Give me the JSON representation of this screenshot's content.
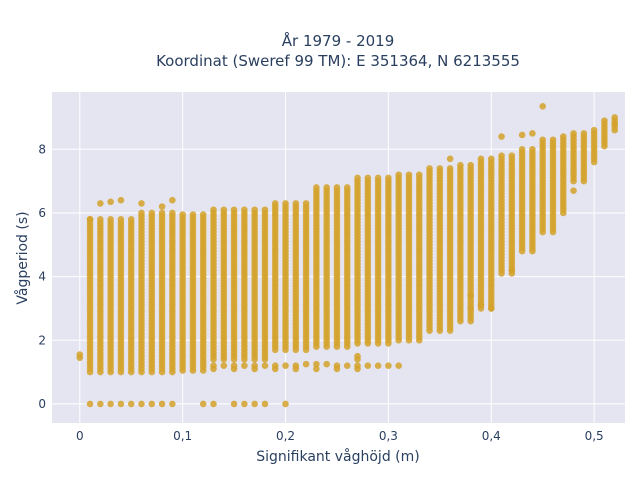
{
  "chart_data": {
    "type": "scatter",
    "title_line1": "År 1979 - 2019",
    "title_line2": "Koordinat (Sweref 99 TM): E 351364, N 6213555",
    "xlabel": "Signifikant våghöjd (m)",
    "ylabel": "Vågperiod (s)",
    "xlim": [
      -0.027,
      0.53
    ],
    "ylim": [
      -0.6,
      9.8
    ],
    "xticks": [
      0,
      0.1,
      0.2,
      0.3,
      0.4,
      0.5
    ],
    "xtick_labels": [
      "0",
      "0,1",
      "0,2",
      "0,3",
      "0,4",
      "0,5"
    ],
    "yticks": [
      0,
      2,
      4,
      6,
      8
    ],
    "ytick_labels": [
      "0",
      "2",
      "4",
      "6",
      "8"
    ],
    "grid": true,
    "marker_color": "#d4a22a",
    "plot_bg": "#e5e5f2",
    "bands": [
      {
        "x_from": 0.01,
        "x_to": 0.05,
        "y_min": 1.0,
        "y_max": 5.8
      },
      {
        "x_from": 0.06,
        "x_to": 0.09,
        "y_min": 1.0,
        "y_max": 6.0
      },
      {
        "x_from": 0.1,
        "x_to": 0.12,
        "y_min": 1.05,
        "y_max": 6.0
      },
      {
        "x_from": 0.13,
        "x_to": 0.18,
        "y_min": 1.4,
        "y_max": 6.1
      },
      {
        "x_from": 0.19,
        "x_to": 0.22,
        "y_min": 1.7,
        "y_max": 6.3
      },
      {
        "x_from": 0.23,
        "x_to": 0.26,
        "y_min": 1.8,
        "y_max": 6.8
      },
      {
        "x_from": 0.27,
        "x_to": 0.3,
        "y_min": 1.9,
        "y_max": 7.1
      },
      {
        "x_from": 0.31,
        "x_to": 0.33,
        "y_min": 2.0,
        "y_max": 7.2
      },
      {
        "x_from": 0.34,
        "x_to": 0.36,
        "y_min": 2.3,
        "y_max": 7.4
      },
      {
        "x_from": 0.37,
        "x_to": 0.38,
        "y_min": 2.6,
        "y_max": 7.5
      },
      {
        "x_from": 0.39,
        "x_to": 0.4,
        "y_min": 3.0,
        "y_max": 7.7
      },
      {
        "x_from": 0.41,
        "x_to": 0.42,
        "y_min": 4.1,
        "y_max": 7.8
      },
      {
        "x_from": 0.43,
        "x_to": 0.44,
        "y_min": 4.8,
        "y_max": 8.0
      },
      {
        "x_from": 0.45,
        "x_to": 0.46,
        "y_min": 5.4,
        "y_max": 8.3
      },
      {
        "x_from": 0.47,
        "x_to": 0.47,
        "y_min": 6.0,
        "y_max": 8.4
      },
      {
        "x_from": 0.48,
        "x_to": 0.49,
        "y_min": 7.0,
        "y_max": 8.5
      },
      {
        "x_from": 0.5,
        "x_to": 0.5,
        "y_min": 7.6,
        "y_max": 8.6
      },
      {
        "x_from": 0.51,
        "x_to": 0.51,
        "y_min": 8.1,
        "y_max": 8.9
      },
      {
        "x_from": 0.52,
        "x_to": 0.52,
        "y_min": 8.6,
        "y_max": 9.0
      }
    ],
    "isolated_points": [
      {
        "x": 0.0,
        "y": 1.45
      },
      {
        "x": 0.0,
        "y": 1.55
      },
      {
        "x": 0.01,
        "y": 0.0
      },
      {
        "x": 0.02,
        "y": 0.0
      },
      {
        "x": 0.03,
        "y": 0.0
      },
      {
        "x": 0.04,
        "y": 0.0
      },
      {
        "x": 0.05,
        "y": 0.0
      },
      {
        "x": 0.06,
        "y": 0.0
      },
      {
        "x": 0.07,
        "y": 0.0
      },
      {
        "x": 0.08,
        "y": 0.0
      },
      {
        "x": 0.09,
        "y": 0.0
      },
      {
        "x": 0.12,
        "y": 0.0
      },
      {
        "x": 0.13,
        "y": 0.0
      },
      {
        "x": 0.15,
        "y": 0.0
      },
      {
        "x": 0.16,
        "y": 0.0
      },
      {
        "x": 0.17,
        "y": 0.0
      },
      {
        "x": 0.18,
        "y": 0.0
      },
      {
        "x": 0.2,
        "y": 0.0
      },
      {
        "x": 0.13,
        "y": 1.2
      },
      {
        "x": 0.14,
        "y": 1.2
      },
      {
        "x": 0.15,
        "y": 1.2
      },
      {
        "x": 0.16,
        "y": 1.2
      },
      {
        "x": 0.17,
        "y": 1.2
      },
      {
        "x": 0.18,
        "y": 1.2
      },
      {
        "x": 0.19,
        "y": 1.2
      },
      {
        "x": 0.2,
        "y": 1.2
      },
      {
        "x": 0.21,
        "y": 1.2
      },
      {
        "x": 0.22,
        "y": 1.25
      },
      {
        "x": 0.23,
        "y": 1.25
      },
      {
        "x": 0.24,
        "y": 1.25
      },
      {
        "x": 0.25,
        "y": 1.2
      },
      {
        "x": 0.26,
        "y": 1.2
      },
      {
        "x": 0.27,
        "y": 1.2
      },
      {
        "x": 0.28,
        "y": 1.2
      },
      {
        "x": 0.29,
        "y": 1.2
      },
      {
        "x": 0.3,
        "y": 1.2
      },
      {
        "x": 0.31,
        "y": 1.2
      },
      {
        "x": 0.13,
        "y": 1.1
      },
      {
        "x": 0.15,
        "y": 1.1
      },
      {
        "x": 0.17,
        "y": 1.1
      },
      {
        "x": 0.19,
        "y": 1.1
      },
      {
        "x": 0.21,
        "y": 1.1
      },
      {
        "x": 0.23,
        "y": 1.1
      },
      {
        "x": 0.25,
        "y": 1.1
      },
      {
        "x": 0.27,
        "y": 1.1
      },
      {
        "x": 0.02,
        "y": 6.3
      },
      {
        "x": 0.03,
        "y": 6.35
      },
      {
        "x": 0.04,
        "y": 6.4
      },
      {
        "x": 0.09,
        "y": 6.4
      },
      {
        "x": 0.06,
        "y": 6.3
      },
      {
        "x": 0.08,
        "y": 6.2
      },
      {
        "x": 0.01,
        "y": 5.8
      },
      {
        "x": 0.27,
        "y": 1.5
      },
      {
        "x": 0.27,
        "y": 1.4
      },
      {
        "x": 0.45,
        "y": 9.35
      },
      {
        "x": 0.41,
        "y": 8.4
      },
      {
        "x": 0.43,
        "y": 8.45
      },
      {
        "x": 0.44,
        "y": 8.5
      },
      {
        "x": 0.36,
        "y": 7.7
      },
      {
        "x": 0.48,
        "y": 6.7
      },
      {
        "x": 0.42,
        "y": 4.2
      },
      {
        "x": 0.38,
        "y": 3.0
      },
      {
        "x": 0.38,
        "y": 3.4
      },
      {
        "x": 0.4,
        "y": 3.0
      },
      {
        "x": 0.39,
        "y": 3.1
      },
      {
        "x": 0.52,
        "y": 8.8
      }
    ]
  }
}
